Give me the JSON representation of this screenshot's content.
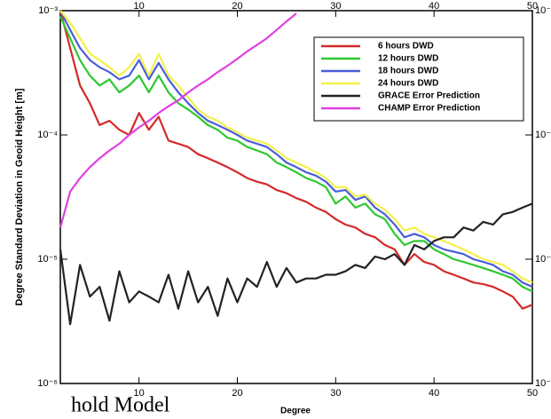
{
  "chart_data": {
    "type": "line",
    "xlabel": "Degree",
    "ylabel": "Degree Standard Deviation in Geoid Height [m]",
    "annotation": "hold Model",
    "log_y": true,
    "legend": "upper right",
    "xlim": [
      2,
      50
    ],
    "xticks": [
      10,
      20,
      30,
      40,
      50
    ],
    "ylim": [
      1e-06,
      0.001
    ],
    "yticks": [
      {
        "value": 1e-06,
        "label": "10⁻⁶"
      },
      {
        "value": 1e-05,
        "label": "10⁻⁵"
      },
      {
        "value": 0.0001,
        "label": "10⁻⁴"
      },
      {
        "value": 0.001,
        "label": "10⁻³"
      }
    ],
    "x": [
      2,
      3,
      4,
      5,
      6,
      7,
      8,
      9,
      10,
      11,
      12,
      13,
      14,
      15,
      16,
      17,
      18,
      19,
      20,
      21,
      22,
      23,
      24,
      25,
      26,
      27,
      28,
      29,
      30,
      31,
      32,
      33,
      34,
      35,
      36,
      37,
      38,
      39,
      40,
      41,
      42,
      43,
      44,
      45,
      46,
      47,
      48,
      49,
      50
    ],
    "series": [
      {
        "name": "6 hours DWD",
        "color": "#d42a2a",
        "values": [
          0.001,
          0.0005,
          0.00025,
          0.00018,
          0.00012,
          0.00013,
          0.00011,
          0.0001,
          0.00015,
          0.00011,
          0.00014,
          9e-05,
          8.5e-05,
          8e-05,
          7e-05,
          6.5e-05,
          6e-05,
          5.5e-05,
          5e-05,
          4.5e-05,
          4.2e-05,
          4e-05,
          3.6e-05,
          3.4e-05,
          3.1e-05,
          2.9e-05,
          2.6e-05,
          2.4e-05,
          2.1e-05,
          1.9e-05,
          1.8e-05,
          1.6e-05,
          1.5e-05,
          1.3e-05,
          1.2e-05,
          9e-06,
          1.1e-05,
          9.5e-06,
          9e-06,
          8e-06,
          7.5e-06,
          7e-06,
          6.5e-06,
          6.3e-06,
          6e-06,
          5.5e-06,
          5e-06,
          4e-06,
          4.3e-06
        ]
      },
      {
        "name": "12 hours DWD",
        "color": "#2ec82e",
        "values": [
          0.0009,
          0.0006,
          0.0004,
          0.0003,
          0.00025,
          0.00028,
          0.00022,
          0.00025,
          0.0003,
          0.00022,
          0.0003,
          0.00022,
          0.00018,
          0.00016,
          0.00014,
          0.00012,
          0.00011,
          9.5e-05,
          9e-05,
          8e-05,
          7.5e-05,
          7e-05,
          6e-05,
          5.5e-05,
          5e-05,
          4.5e-05,
          4.2e-05,
          3.8e-05,
          2.8e-05,
          3.2e-05,
          2.6e-05,
          2.8e-05,
          2.3e-05,
          2.1e-05,
          1.6e-05,
          1.3e-05,
          1.4e-05,
          1.4e-05,
          1.2e-05,
          1.1e-05,
          1e-05,
          9.5e-06,
          9e-06,
          8.5e-06,
          8e-06,
          7.5e-06,
          7e-06,
          6e-06,
          5.5e-06
        ]
      },
      {
        "name": "18 hours DWD",
        "color": "#4a5ed8",
        "values": [
          0.001,
          0.0007,
          0.0005,
          0.0004,
          0.00035,
          0.00032,
          0.00028,
          0.0003,
          0.0004,
          0.00028,
          0.00038,
          0.00028,
          0.00022,
          0.00018,
          0.00015,
          0.00013,
          0.00012,
          0.00011,
          0.0001,
          9e-05,
          8.5e-05,
          8e-05,
          7e-05,
          6e-05,
          5.5e-05,
          5e-05,
          4.7e-05,
          4.2e-05,
          3.5e-05,
          3.6e-05,
          3e-05,
          3.2e-05,
          2.6e-05,
          2.3e-05,
          1.9e-05,
          1.5e-05,
          1.6e-05,
          1.5e-05,
          1.3e-05,
          1.2e-05,
          1.15e-05,
          1.1e-05,
          1e-05,
          9.5e-06,
          9e-06,
          8e-06,
          7.5e-06,
          6.5e-06,
          6e-06
        ]
      },
      {
        "name": "24 hours DWD",
        "color": "#f2f04a",
        "values": [
          0.001,
          0.0008,
          0.0006,
          0.00045,
          0.0004,
          0.00035,
          0.0003,
          0.00035,
          0.00045,
          0.0003,
          0.00045,
          0.0003,
          0.00025,
          0.0002,
          0.00016,
          0.00014,
          0.00013,
          0.000115,
          0.000105,
          9.5e-05,
          9e-05,
          8.5e-05,
          7.5e-05,
          6.5e-05,
          6e-05,
          5.5e-05,
          5e-05,
          4.5e-05,
          3.8e-05,
          3.8e-05,
          3.2e-05,
          3.3e-05,
          2.8e-05,
          2.5e-05,
          2.1e-05,
          1.7e-05,
          1.8e-05,
          1.6e-05,
          1.5e-05,
          1.4e-05,
          1.3e-05,
          1.2e-05,
          1.1e-05,
          1e-05,
          9.5e-06,
          9e-06,
          8e-06,
          7e-06,
          6.5e-06
        ]
      },
      {
        "name": "GRACE Error Prediction",
        "color": "#222222",
        "values": [
          1.2e-05,
          3e-06,
          9e-06,
          5e-06,
          6e-06,
          3.2e-06,
          8e-06,
          4.5e-06,
          5.5e-06,
          5e-06,
          4.5e-06,
          7.5e-06,
          4e-06,
          8e-06,
          4.5e-06,
          6e-06,
          3.5e-06,
          7e-06,
          4.5e-06,
          7e-06,
          6e-06,
          9.5e-06,
          6e-06,
          8.5e-06,
          6.5e-06,
          7e-06,
          7e-06,
          7.5e-06,
          7.5e-06,
          8e-06,
          9e-06,
          8.5e-06,
          1.05e-05,
          1e-05,
          1.1e-05,
          9e-06,
          1.3e-05,
          1.2e-05,
          1.4e-05,
          1.5e-05,
          1.5e-05,
          1.8e-05,
          1.7e-05,
          2e-05,
          1.9e-05,
          2.3e-05,
          2.4e-05,
          2.6e-05,
          2.8e-05
        ]
      },
      {
        "name": "CHAMP Error Prediction",
        "color": "#e040e0",
        "values": [
          1.8e-05,
          3.5e-05,
          4.5e-05,
          5.5e-05,
          6.5e-05,
          7.5e-05,
          8.5e-05,
          0.0001,
          0.000115,
          0.00013,
          0.00015,
          0.00017,
          0.00019,
          0.00022,
          0.00025,
          0.00028,
          0.00032,
          0.00036,
          0.00041,
          0.00047,
          0.00053,
          0.0006,
          0.0007,
          0.00082,
          0.00095,
          null,
          null,
          null,
          null,
          null,
          null,
          null,
          null,
          null,
          null,
          null,
          null,
          null,
          null,
          null,
          null,
          null,
          null,
          null,
          null,
          null,
          null,
          null,
          null
        ]
      }
    ]
  }
}
